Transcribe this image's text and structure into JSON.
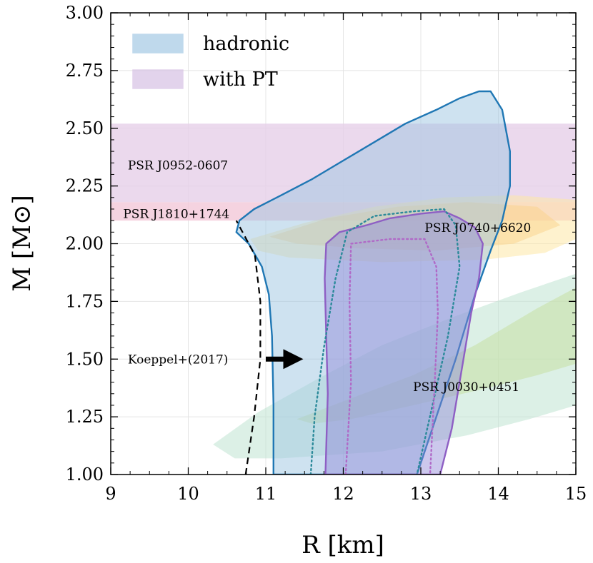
{
  "chart_data": {
    "type": "area",
    "xlabel": "R [km]",
    "ylabel": "M [M⊙]",
    "xlim": [
      9,
      15
    ],
    "ylim": [
      1.0,
      3.0
    ],
    "xticks": [
      "9",
      "10",
      "11",
      "12",
      "13",
      "14",
      "15"
    ],
    "xtick_values": [
      9,
      10,
      11,
      12,
      13,
      14,
      15
    ],
    "yticks": [
      "1.00",
      "1.25",
      "1.50",
      "1.75",
      "2.00",
      "2.25",
      "2.50",
      "2.75",
      "3.00"
    ],
    "ytick_values": [
      1.0,
      1.25,
      1.5,
      1.75,
      2.0,
      2.25,
      2.5,
      2.75,
      3.0
    ],
    "grid": true,
    "legend": {
      "position": "top-left",
      "entries": [
        {
          "label": "hadronic",
          "color": "#9ec5e2"
        },
        {
          "label": "with PT",
          "color": "#d4bde3"
        }
      ]
    },
    "mass_bands": [
      {
        "name": "PSR J0952-0607",
        "range": [
          2.18,
          2.52
        ],
        "color": "#e6cfe8"
      },
      {
        "name": "PSR J1810+1744",
        "range": [
          2.1,
          2.18
        ],
        "color": "#f2c8d8"
      }
    ],
    "annotations": [
      {
        "text": "PSR J0952-0607",
        "x": 9.22,
        "y": 2.34
      },
      {
        "text": "PSR J1810+1744",
        "x": 9.16,
        "y": 2.13
      },
      {
        "text": "PSR J0740+6620",
        "x": 13.05,
        "y": 2.07
      },
      {
        "text": "PSR J0030+0451",
        "x": 12.9,
        "y": 1.38
      },
      {
        "text": "Koeppel+(2017)",
        "x": 9.22,
        "y": 1.5
      }
    ],
    "arrow": {
      "label": "Koeppel+(2017)",
      "from": [
        11.0,
        1.5
      ],
      "to": [
        11.48,
        1.5
      ]
    },
    "koeppel_bound": [
      [
        10.74,
        1.0
      ],
      [
        10.85,
        1.25
      ],
      [
        10.93,
        1.5
      ],
      [
        10.93,
        1.75
      ],
      [
        10.86,
        1.95
      ],
      [
        10.62,
        2.1
      ]
    ],
    "observation_regions": [
      {
        "name": "PSR J0740+6620 outer",
        "color": "#fde7a6",
        "opacity": 0.55,
        "points": [
          [
            10.8,
            2.02
          ],
          [
            11.5,
            2.09
          ],
          [
            12.4,
            2.16
          ],
          [
            13.3,
            2.2
          ],
          [
            14.2,
            2.21
          ],
          [
            15.0,
            2.19
          ],
          [
            15.0,
            2.02
          ],
          [
            14.6,
            1.96
          ],
          [
            13.8,
            1.93
          ],
          [
            12.5,
            1.92
          ],
          [
            11.3,
            1.94
          ],
          [
            10.9,
            1.97
          ]
        ]
      },
      {
        "name": "PSR J0740+6620 inner",
        "color": "#fad28a",
        "opacity": 0.5,
        "points": [
          [
            11.05,
            2.03
          ],
          [
            11.8,
            2.11
          ],
          [
            12.7,
            2.16
          ],
          [
            13.6,
            2.18
          ],
          [
            14.5,
            2.16
          ],
          [
            14.8,
            2.08
          ],
          [
            14.2,
            2.0
          ],
          [
            13.2,
            1.97
          ],
          [
            12.2,
            1.98
          ],
          [
            11.4,
            2.0
          ]
        ]
      },
      {
        "name": "PSR J0030+0451 outer",
        "color": "#bfe3d2",
        "opacity": 0.55,
        "points": [
          [
            10.32,
            1.13
          ],
          [
            10.9,
            1.27
          ],
          [
            11.7,
            1.42
          ],
          [
            12.5,
            1.56
          ],
          [
            13.4,
            1.68
          ],
          [
            14.3,
            1.79
          ],
          [
            15.0,
            1.87
          ],
          [
            15.0,
            1.3
          ],
          [
            14.4,
            1.24
          ],
          [
            13.6,
            1.17
          ],
          [
            12.5,
            1.1
          ],
          [
            11.2,
            1.07
          ],
          [
            10.6,
            1.07
          ]
        ]
      },
      {
        "name": "PSR J0030+0451 inner",
        "color": "#c6e0a2",
        "opacity": 0.55,
        "points": [
          [
            11.4,
            1.24
          ],
          [
            12.1,
            1.33
          ],
          [
            12.9,
            1.43
          ],
          [
            13.7,
            1.56
          ],
          [
            14.5,
            1.72
          ],
          [
            15.0,
            1.81
          ],
          [
            15.0,
            1.48
          ],
          [
            14.5,
            1.43
          ],
          [
            13.8,
            1.37
          ],
          [
            12.9,
            1.3
          ],
          [
            12.1,
            1.24
          ],
          [
            11.6,
            1.22
          ]
        ]
      }
    ],
    "series": [
      {
        "name": "hadronic",
        "kind": "filled-contour",
        "fill": "#9ec5e2",
        "stroke": "#1f77b4",
        "opacity": 0.5,
        "points": [
          [
            11.1,
            1.0
          ],
          [
            11.1,
            1.3
          ],
          [
            11.08,
            1.6
          ],
          [
            11.04,
            1.78
          ],
          [
            10.95,
            1.9
          ],
          [
            10.78,
            2.0
          ],
          [
            10.62,
            2.05
          ],
          [
            10.66,
            2.1
          ],
          [
            10.85,
            2.15
          ],
          [
            11.2,
            2.21
          ],
          [
            11.6,
            2.28
          ],
          [
            12.0,
            2.36
          ],
          [
            12.4,
            2.44
          ],
          [
            12.8,
            2.52
          ],
          [
            13.2,
            2.58
          ],
          [
            13.5,
            2.63
          ],
          [
            13.75,
            2.66
          ],
          [
            13.9,
            2.66
          ],
          [
            14.05,
            2.58
          ],
          [
            14.15,
            2.4
          ],
          [
            14.15,
            2.25
          ],
          [
            14.05,
            2.1
          ],
          [
            13.9,
            1.97
          ],
          [
            13.7,
            1.78
          ],
          [
            13.45,
            1.5
          ],
          [
            13.2,
            1.25
          ],
          [
            12.95,
            1.0
          ]
        ]
      },
      {
        "name": "with PT",
        "kind": "filled-contour",
        "fill": "#8d86d8",
        "stroke": "#8e5fc4",
        "opacity": 0.45,
        "points": [
          [
            11.77,
            1.0
          ],
          [
            11.8,
            1.35
          ],
          [
            11.78,
            1.6
          ],
          [
            11.76,
            1.85
          ],
          [
            11.78,
            2.0
          ],
          [
            11.95,
            2.05
          ],
          [
            12.3,
            2.08
          ],
          [
            12.6,
            2.11
          ],
          [
            13.0,
            2.13
          ],
          [
            13.3,
            2.14
          ],
          [
            13.5,
            2.11
          ],
          [
            13.7,
            2.07
          ],
          [
            13.8,
            2.0
          ],
          [
            13.75,
            1.85
          ],
          [
            13.65,
            1.7
          ],
          [
            13.55,
            1.5
          ],
          [
            13.4,
            1.2
          ],
          [
            13.25,
            1.0
          ]
        ]
      },
      {
        "name": "hadronic 1σ",
        "kind": "dotted-contour",
        "stroke": "#2b8a9a",
        "points": [
          [
            11.58,
            1.0
          ],
          [
            11.63,
            1.25
          ],
          [
            11.75,
            1.55
          ],
          [
            11.9,
            1.85
          ],
          [
            12.05,
            2.05
          ],
          [
            12.4,
            2.12
          ],
          [
            12.9,
            2.14
          ],
          [
            13.3,
            2.15
          ],
          [
            13.45,
            2.08
          ],
          [
            13.5,
            1.9
          ],
          [
            13.35,
            1.6
          ],
          [
            13.15,
            1.3
          ],
          [
            12.95,
            1.0
          ]
        ]
      },
      {
        "name": "with PT 1σ",
        "kind": "dotted-contour",
        "stroke": "#b06ac7",
        "points": [
          [
            12.03,
            1.0
          ],
          [
            12.1,
            1.4
          ],
          [
            12.08,
            1.75
          ],
          [
            12.1,
            2.0
          ],
          [
            12.6,
            2.02
          ],
          [
            13.05,
            2.02
          ],
          [
            13.2,
            1.9
          ],
          [
            13.22,
            1.7
          ],
          [
            13.18,
            1.4
          ],
          [
            13.12,
            1.0
          ]
        ]
      }
    ]
  }
}
